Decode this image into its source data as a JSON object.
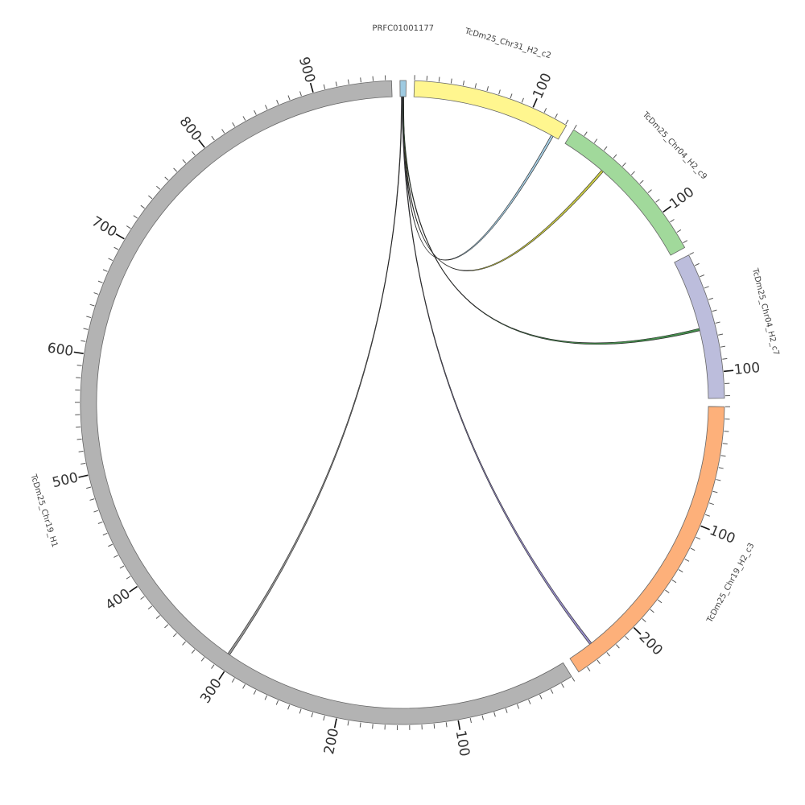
{
  "chart_data": {
    "type": "chord",
    "segments": [
      {
        "name": "PRFC01001177",
        "color": "#9ecae1",
        "length": 5,
        "ticks": []
      },
      {
        "name": "TcDm25_Chr31_H2_c2",
        "color": "#fff68f",
        "length": 131,
        "ticks": [
          100
        ]
      },
      {
        "name": "TcDm25_Chr04_H2_c9",
        "color": "#a1d99b",
        "length": 134,
        "ticks": [
          100
        ]
      },
      {
        "name": "TcDm25_Chr04_H2_c7",
        "color": "#bcbddc",
        "length": 122,
        "ticks": [
          100
        ]
      },
      {
        "name": "TcDm25_Chr19_H2_c3",
        "color": "#fdb07a",
        "length": 258,
        "ticks": [
          100,
          200
        ]
      },
      {
        "name": "TcDm25_Chr19_H1",
        "color": "#b3b3b3",
        "length": 965,
        "ticks": [
          100,
          200,
          300,
          400,
          500,
          600,
          700,
          800,
          900
        ]
      }
    ],
    "minor_tick_step": 10,
    "links": [
      {
        "source": 0,
        "source_start": 2.5,
        "source_end": 3.2,
        "target": 1,
        "target_start": 124,
        "target_end": 126,
        "color": "#9ecae1"
      },
      {
        "source": 0,
        "source_start": 2.2,
        "source_end": 2.9,
        "target": 2,
        "target_start": 39,
        "target_end": 41,
        "color": "#c8c832"
      },
      {
        "source": 0,
        "source_start": 2.0,
        "source_end": 2.7,
        "target": 3,
        "target_start": 61,
        "target_end": 63,
        "color": "#31803a"
      },
      {
        "source": 0,
        "source_start": 1.6,
        "source_end": 2.2,
        "target": 4,
        "target_start": 235,
        "target_end": 237,
        "color": "#8a7fc0"
      },
      {
        "source": 0,
        "source_start": 1.0,
        "source_end": 1.6,
        "target": 5,
        "target_start": 304,
        "target_end": 306,
        "color": "#888888"
      }
    ]
  }
}
